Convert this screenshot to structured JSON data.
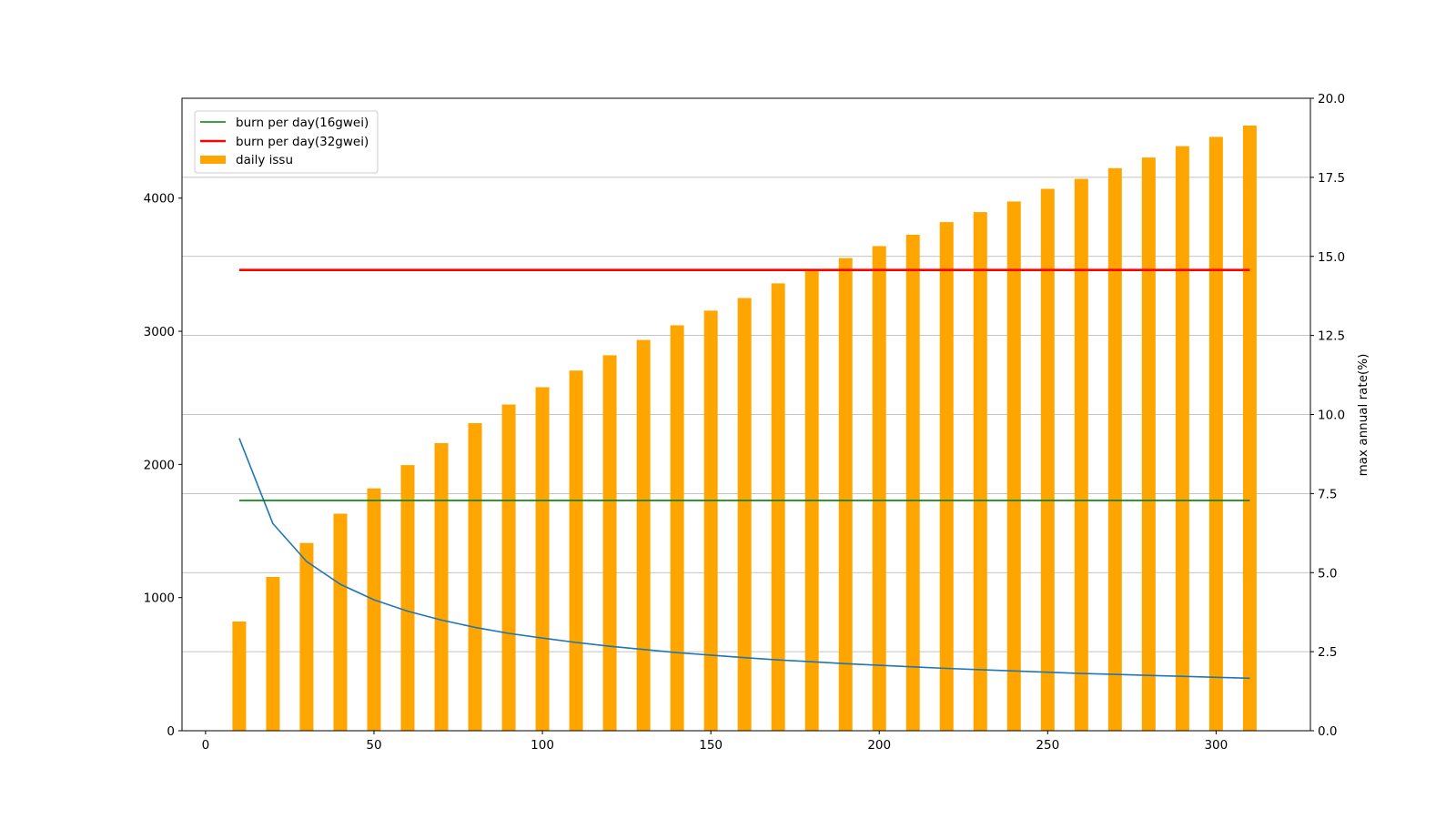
{
  "chart_data": {
    "type": "bar",
    "x": [
      10,
      20,
      30,
      40,
      50,
      60,
      70,
      80,
      90,
      100,
      110,
      120,
      130,
      140,
      150,
      160,
      170,
      180,
      190,
      200,
      210,
      220,
      230,
      240,
      250,
      260,
      270,
      280,
      290,
      300,
      310
    ],
    "series": [
      {
        "name": "burn per day(16gwei)",
        "type": "line",
        "axis": "left",
        "color": "#008000",
        "values": [
          1730,
          1730,
          1730,
          1730,
          1730,
          1730,
          1730,
          1730,
          1730,
          1730,
          1730,
          1730,
          1730,
          1730,
          1730,
          1730,
          1730,
          1730,
          1730,
          1730,
          1730,
          1730,
          1730,
          1730,
          1730,
          1730,
          1730,
          1730,
          1730,
          1730,
          1730
        ]
      },
      {
        "name": "burn per day(32gwei)",
        "type": "line",
        "axis": "left",
        "color": "#ff0000",
        "values": [
          3460,
          3460,
          3460,
          3460,
          3460,
          3460,
          3460,
          3460,
          3460,
          3460,
          3460,
          3460,
          3460,
          3460,
          3460,
          3460,
          3460,
          3460,
          3460,
          3460,
          3460,
          3460,
          3460,
          3460,
          3460,
          3460,
          3460,
          3460,
          3460,
          3460,
          3460
        ]
      },
      {
        "name": "daily issu",
        "type": "bar",
        "axis": "left",
        "color": "#ffa500",
        "values": [
          820,
          1155,
          1410,
          1630,
          1820,
          1995,
          2160,
          2310,
          2450,
          2580,
          2705,
          2820,
          2935,
          3045,
          3155,
          3250,
          3360,
          3460,
          3550,
          3640,
          3725,
          3820,
          3895,
          3975,
          4070,
          4145,
          4225,
          4305,
          4390,
          4460,
          4545
        ]
      },
      {
        "type": "line",
        "axis": "right",
        "color": "#1f77b4",
        "values": [
          9.25,
          6.55,
          5.35,
          4.63,
          4.14,
          3.78,
          3.5,
          3.27,
          3.08,
          2.93,
          2.79,
          2.67,
          2.57,
          2.47,
          2.39,
          2.31,
          2.24,
          2.18,
          2.12,
          2.07,
          2.02,
          1.97,
          1.93,
          1.89,
          1.85,
          1.81,
          1.78,
          1.75,
          1.72,
          1.69,
          1.66
        ]
      }
    ],
    "xlim": [
      -7,
      328
    ],
    "ylim": [
      0,
      4750
    ],
    "ylim_right": [
      0,
      20
    ],
    "xticks": [
      "0",
      "50",
      "100",
      "150",
      "200",
      "250",
      "300"
    ],
    "yticks_left": [
      "0",
      "1000",
      "2000",
      "3000",
      "4000"
    ],
    "yticks_right": [
      "0.0",
      "2.5",
      "5.0",
      "7.5",
      "10.0",
      "12.5",
      "15.0",
      "17.5",
      "20.0"
    ],
    "ylabel_right": "max annual rate(%)",
    "grid": "horizontal (right axis)",
    "legend_position": "upper left"
  }
}
